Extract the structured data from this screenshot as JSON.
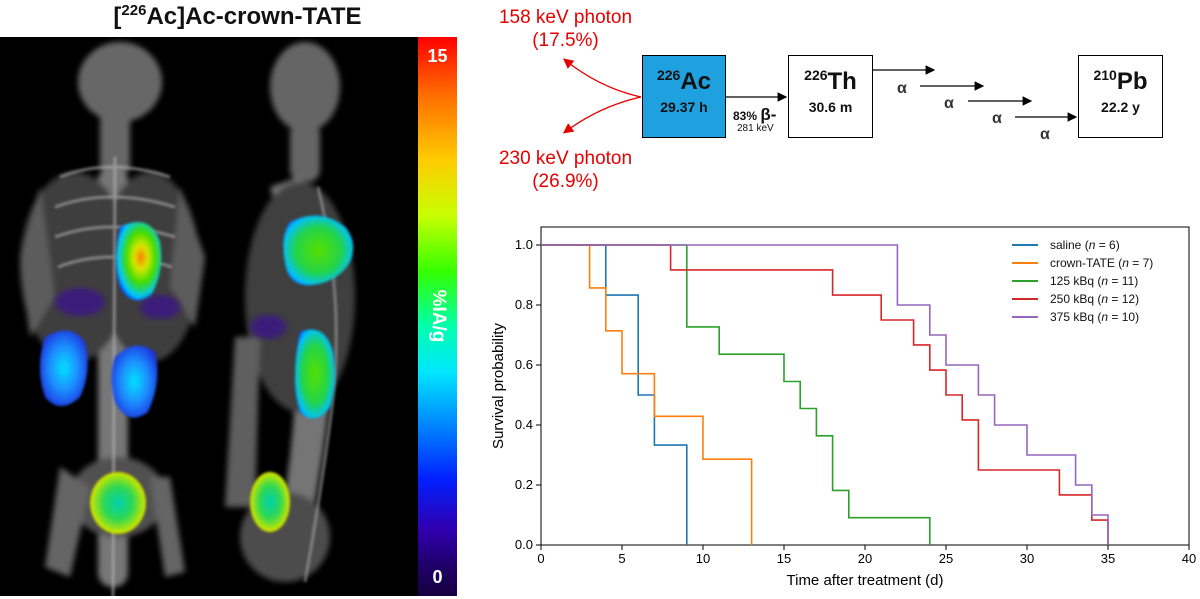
{
  "imaging": {
    "title_prefix": "[",
    "title_mass": "226",
    "title_rest": "Ac]Ac-crown-TATE",
    "colorbar": {
      "max": "15",
      "min": "0",
      "unit": "%IA/g"
    }
  },
  "decay_scheme": {
    "photon_158": "158 keV photon\n(17.5%)",
    "photon_230": "230 keV photon\n(26.9%)",
    "nuclides": [
      {
        "mass": "226",
        "symbol": "Ac",
        "halflife": "29.37 h",
        "color": "#1ea1de"
      },
      {
        "mass": "226",
        "symbol": "Th",
        "halflife": "30.6 m"
      },
      {
        "mass": "210",
        "symbol": "Pb",
        "halflife": "22.2 y"
      }
    ],
    "beta_branch": "83%",
    "beta_symbol": "β-",
    "beta_energy": "281 keV",
    "alpha": "α"
  },
  "chart_data": {
    "type": "line",
    "style": "step (Kaplan-Meier survival)",
    "xlabel": "Time after treatment (d)",
    "ylabel": "Survival probability",
    "xlim": [
      0,
      40
    ],
    "ylim": [
      0,
      1.0
    ],
    "xticks": [
      0,
      5,
      10,
      15,
      20,
      25,
      30,
      35,
      40
    ],
    "yticks": [
      0.0,
      0.2,
      0.4,
      0.6,
      0.8,
      1.0
    ],
    "legend_position": "top-right",
    "series": [
      {
        "name": "saline (n = 6)",
        "label": "saline",
        "n": "n = 6",
        "color": "#1f77b4",
        "x": [
          0,
          4,
          6,
          7,
          9
        ],
        "y": [
          1.0,
          0.833,
          0.5,
          0.333,
          0.0
        ]
      },
      {
        "name": "crown-TATE (n = 7)",
        "label": "crown-TATE",
        "n": "n = 7",
        "color": "#ff7f0e",
        "x": [
          0,
          3,
          4,
          5,
          7,
          10,
          13
        ],
        "y": [
          1.0,
          0.857,
          0.714,
          0.571,
          0.429,
          0.286,
          0.0
        ]
      },
      {
        "name": "125 kBq (n = 11)",
        "label": "125 kBq",
        "n": "n = 11",
        "color": "#2ca02c",
        "x": [
          0,
          9,
          11,
          15,
          16,
          17,
          18,
          19,
          24
        ],
        "y": [
          1.0,
          0.727,
          0.636,
          0.545,
          0.455,
          0.364,
          0.182,
          0.091,
          0.0
        ]
      },
      {
        "name": "250 kBq (n = 12)",
        "label": "250 kBq",
        "n": "n = 12",
        "color": "#d62728",
        "x": [
          0,
          8,
          18,
          21,
          23,
          24,
          25,
          26,
          27,
          32,
          34,
          35
        ],
        "y": [
          1.0,
          0.917,
          0.833,
          0.75,
          0.667,
          0.583,
          0.5,
          0.417,
          0.25,
          0.167,
          0.083,
          0.0
        ]
      },
      {
        "name": "375 kBq (n = 10)",
        "label": "375 kBq",
        "n": "n = 10",
        "color": "#9467bd",
        "x": [
          0,
          22,
          24,
          25,
          27,
          28,
          30,
          33,
          34,
          35
        ],
        "y": [
          1.0,
          0.8,
          0.7,
          0.6,
          0.5,
          0.4,
          0.3,
          0.2,
          0.1,
          0.0
        ]
      }
    ]
  }
}
